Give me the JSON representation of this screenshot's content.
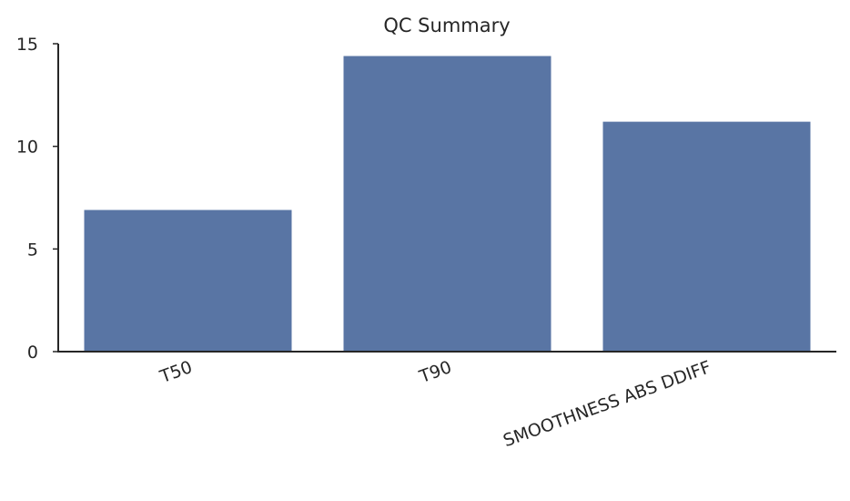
{
  "chart_data": {
    "type": "bar",
    "title": "QC Summary",
    "categories": [
      "T50",
      "T90",
      "SMOOTHNESS ABS DDIFF"
    ],
    "values": [
      6.9,
      14.4,
      11.2
    ],
    "xlabel": "",
    "ylabel": "",
    "ylim": [
      0,
      15
    ],
    "yticks": [
      0,
      5,
      10,
      15
    ],
    "grid": false,
    "bar_color": "#5975a4"
  }
}
